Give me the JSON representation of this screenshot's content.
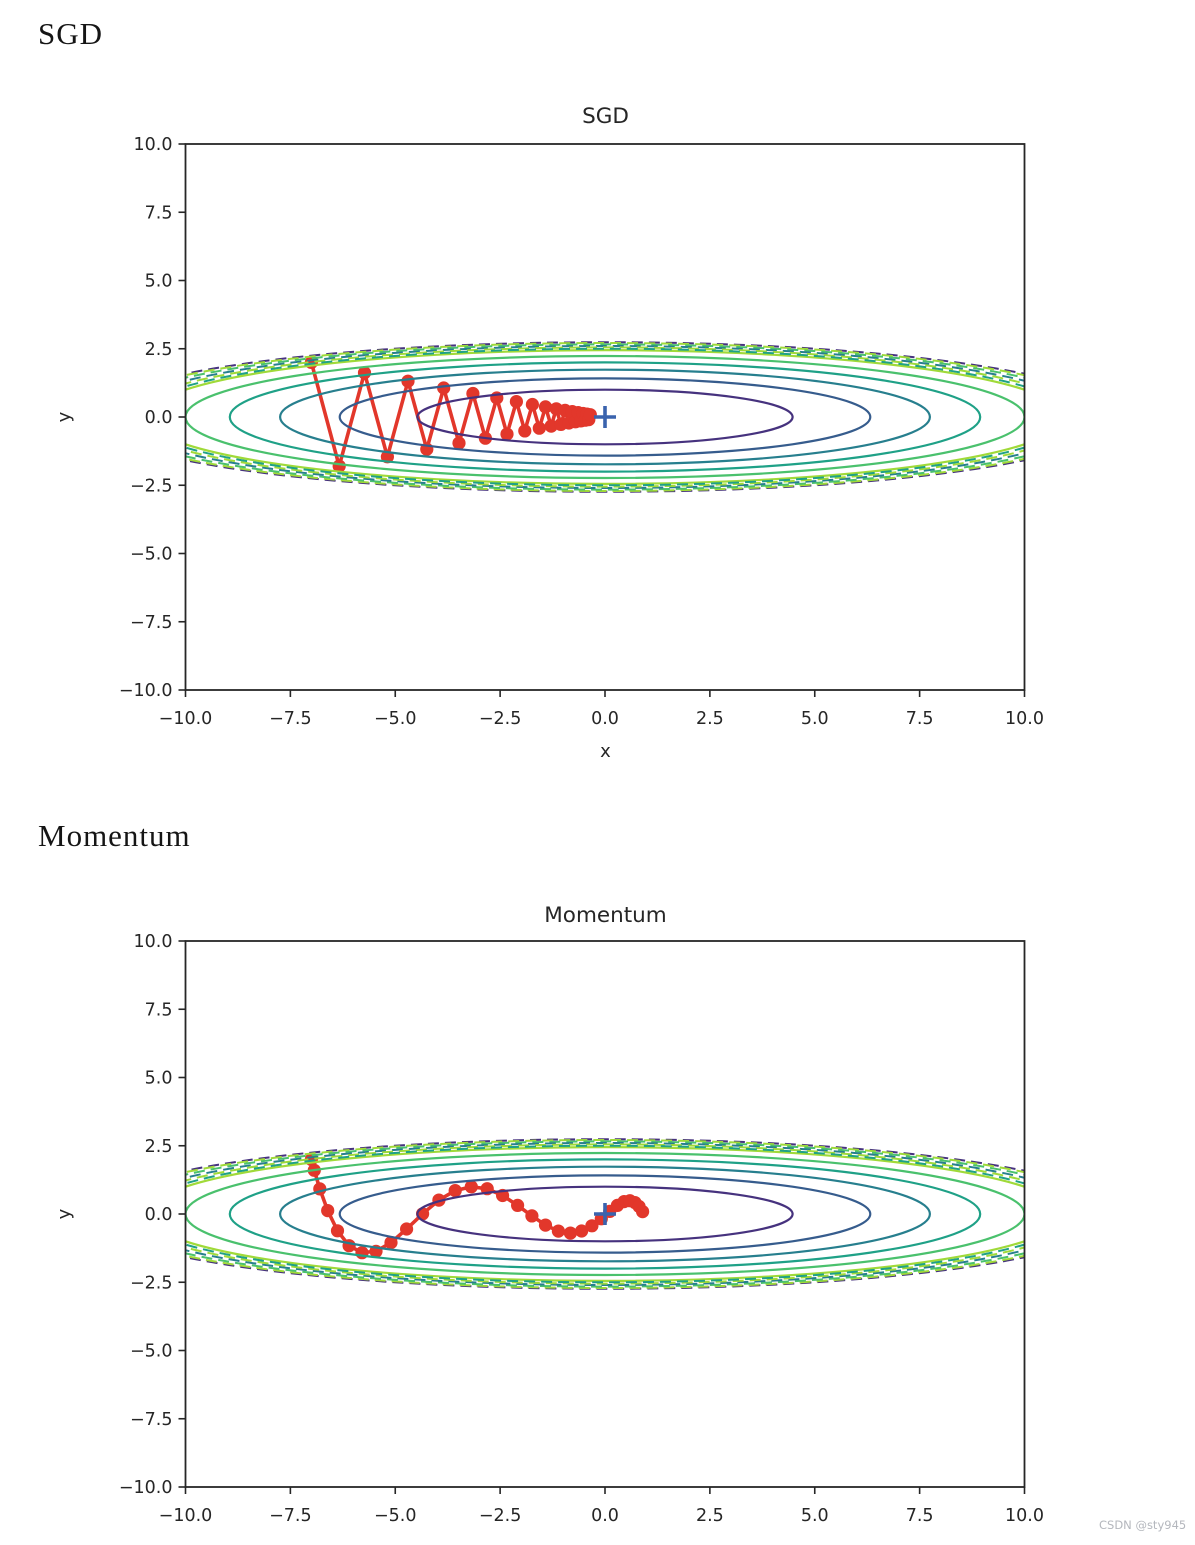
{
  "page": {
    "headings": [
      {
        "text": "SGD"
      },
      {
        "text": "Momentum"
      }
    ],
    "watermark": "CSDN @sty945"
  },
  "chart_data": [
    {
      "type": "line",
      "title": "SGD",
      "xlabel": "x",
      "ylabel": "y",
      "xlim": [
        -10,
        10
      ],
      "ylim": [
        -10,
        10
      ],
      "xticks": [
        "-10.0",
        "-7.5",
        "-5.0",
        "-2.5",
        "0.0",
        "2.5",
        "5.0",
        "7.5",
        "10.0"
      ],
      "yticks": [
        "10.0",
        "7.5",
        "5.0",
        "2.5",
        "0.0",
        "-2.5",
        "-5.0",
        "-7.5",
        "-10.0"
      ],
      "grid": false,
      "contour": {
        "function": "f(x,y) = x^2/20 + y^2",
        "levels": [
          1,
          2,
          3,
          4,
          5,
          6
        ],
        "level_colors": [
          "#46327e",
          "#365c8d",
          "#277f8e",
          "#1fa187",
          "#4ac16d",
          "#a0da39"
        ],
        "boundary_bundle": [
          {
            "b": 2.74,
            "color": "#46327e"
          },
          {
            "b": 2.71,
            "color": "#a0da39"
          },
          {
            "b": 2.66,
            "color": "#4ac16d"
          },
          {
            "b": 2.6,
            "color": "#277f8e"
          },
          {
            "b": 2.55,
            "color": "#a0da39"
          },
          {
            "b": 2.5,
            "color": "#1fa187"
          }
        ]
      },
      "trajectory": {
        "color": "#e2372b",
        "points": [
          [
            -7.0,
            2.0
          ],
          [
            -6.335,
            -1.8
          ],
          [
            -5.733,
            1.62
          ],
          [
            -5.188,
            -1.458
          ],
          [
            -4.695,
            1.312
          ],
          [
            -4.249,
            -1.181
          ],
          [
            -3.846,
            1.063
          ],
          [
            -3.48,
            -0.957
          ],
          [
            -3.15,
            0.861
          ],
          [
            -2.851,
            -0.775
          ],
          [
            -2.58,
            0.697
          ],
          [
            -2.335,
            -0.628
          ],
          [
            -2.113,
            0.565
          ],
          [
            -1.912,
            -0.508
          ],
          [
            -1.731,
            0.458
          ],
          [
            -1.566,
            -0.412
          ],
          [
            -1.418,
            0.371
          ],
          [
            -1.283,
            -0.334
          ],
          [
            -1.161,
            0.3
          ],
          [
            -1.051,
            -0.27
          ],
          [
            -0.951,
            0.243
          ],
          [
            -0.861,
            -0.219
          ],
          [
            -0.779,
            0.197
          ],
          [
            -0.705,
            -0.177
          ],
          [
            -0.638,
            0.16
          ],
          [
            -0.577,
            -0.144
          ],
          [
            -0.523,
            0.129
          ],
          [
            -0.473,
            -0.116
          ],
          [
            -0.428,
            0.105
          ],
          [
            -0.387,
            -0.094
          ],
          [
            -0.351,
            0.085
          ]
        ]
      },
      "optimum_marker": {
        "x": 0,
        "y": 0,
        "symbol": "+",
        "color": "#3a63ad"
      }
    },
    {
      "type": "line",
      "title": "Momentum",
      "ylabel": "y",
      "xlim": [
        -10,
        10
      ],
      "ylim": [
        -10,
        10
      ],
      "xticks": [
        "-10.0",
        "-7.5",
        "-5.0",
        "-2.5",
        "0.0",
        "2.5",
        "5.0",
        "7.5",
        "10.0"
      ],
      "yticks": [
        "10.0",
        "7.5",
        "5.0",
        "2.5",
        "0.0",
        "-2.5",
        "-5.0",
        "-7.5",
        "-10.0"
      ],
      "grid": false,
      "contour": {
        "function": "f(x,y) = x^2/20 + y^2",
        "levels": [
          1,
          2,
          3,
          4,
          5,
          6
        ],
        "level_colors": [
          "#46327e",
          "#365c8d",
          "#277f8e",
          "#1fa187",
          "#4ac16d",
          "#a0da39"
        ],
        "boundary_bundle": [
          {
            "b": 2.74,
            "color": "#46327e"
          },
          {
            "b": 2.71,
            "color": "#a0da39"
          },
          {
            "b": 2.66,
            "color": "#4ac16d"
          },
          {
            "b": 2.6,
            "color": "#277f8e"
          },
          {
            "b": 2.55,
            "color": "#a0da39"
          },
          {
            "b": 2.5,
            "color": "#1fa187"
          }
        ]
      },
      "trajectory": {
        "color": "#e2372b",
        "points": [
          [
            -7.0,
            2.0
          ],
          [
            -6.93,
            1.6
          ],
          [
            -6.798,
            0.92
          ],
          [
            -6.611,
            0.124
          ],
          [
            -6.376,
            -0.617
          ],
          [
            -6.101,
            -1.161
          ],
          [
            -5.793,
            -1.418
          ],
          [
            -5.458,
            -1.366
          ],
          [
            -5.101,
            -1.046
          ],
          [
            -4.73,
            -0.548
          ],
          [
            -4.348,
            0.009
          ],
          [
            -3.96,
            0.509
          ],
          [
            -3.572,
            0.857
          ],
          [
            -3.187,
            0.998
          ],
          [
            -2.809,
            0.927
          ],
          [
            -2.44,
            0.676
          ],
          [
            -2.084,
            0.316
          ],
          [
            -1.743,
            -0.071
          ],
          [
            -1.418,
            -0.406
          ],
          [
            -1.112,
            -0.626
          ],
          [
            -0.825,
            -0.699
          ],
          [
            -0.558,
            -0.624
          ],
          [
            -0.313,
            -0.433
          ],
          [
            -0.089,
            -0.174
          ],
          [
            0.113,
            0.094
          ],
          [
            0.295,
            0.316
          ],
          [
            0.455,
            0.453
          ],
          [
            0.594,
            0.486
          ],
          [
            0.714,
            0.418
          ],
          [
            0.814,
            0.273
          ],
          [
            0.896,
            0.088
          ]
        ]
      },
      "optimum_marker": {
        "x": 0,
        "y": 0,
        "symbol": "+",
        "color": "#3a63ad"
      }
    }
  ]
}
